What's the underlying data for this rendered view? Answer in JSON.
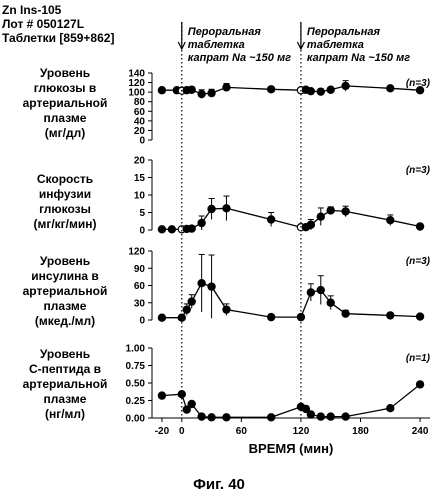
{
  "header": {
    "line1": "Zn Ins-105",
    "line2": "Лот # 050127L",
    "line3": "Таблетки [859+862]"
  },
  "figure_caption": "Фиг. 40",
  "chart_data": {
    "type": "line",
    "xlabel": "ВРЕМЯ (мин)",
    "x_ticks": [
      -20,
      0,
      60,
      120,
      180,
      240
    ],
    "xlim": [
      -30,
      250
    ],
    "dose_times": [
      0,
      120
    ],
    "annotations": [
      {
        "x": 0,
        "lines": [
          "Пероральная",
          "таблетка",
          "капрат Na ~150 мг"
        ]
      },
      {
        "x": 120,
        "lines": [
          "Пероральная",
          "таблетка",
          "капрат Na ~150 мг"
        ]
      }
    ],
    "panels": [
      {
        "title_lines": [
          "Уровень",
          "глюкозы в",
          "артериальной",
          "плазме",
          "(мг/дл)"
        ],
        "n_label": "(n=3)",
        "ylim": [
          0,
          140
        ],
        "y_ticks": [
          "0",
          "20",
          "40",
          "60",
          "80",
          "100",
          "120",
          "140"
        ],
        "x": [
          -20,
          -5,
          0,
          5,
          10,
          20,
          30,
          45,
          90,
          120,
          125,
          130,
          140,
          150,
          165,
          210,
          240
        ],
        "y": [
          104,
          104,
          103,
          104,
          105,
          96,
          98,
          110,
          106,
          104,
          105,
          102,
          101,
          105,
          113,
          108,
          104
        ],
        "err": [
          4,
          3,
          5,
          3,
          6,
          9,
          8,
          8,
          5,
          3,
          4,
          4,
          6,
          5,
          11,
          4,
          4
        ]
      },
      {
        "title_lines": [
          "Скорость",
          "инфузии",
          "глюкозы",
          "(мг/кг/мин)"
        ],
        "n_label": "(n=3)",
        "ylim": [
          0,
          20
        ],
        "y_ticks": [
          "0",
          "5",
          "10",
          "15",
          "20"
        ],
        "x": [
          -20,
          -10,
          0,
          5,
          10,
          20,
          30,
          45,
          90,
          120,
          125,
          130,
          140,
          150,
          165,
          210,
          240
        ],
        "y": [
          0.2,
          0.2,
          0.2,
          0.3,
          0.4,
          2.0,
          6.0,
          6.2,
          3.0,
          0.8,
          0.8,
          1.5,
          3.8,
          5.6,
          5.3,
          2.8,
          1.0
        ],
        "err": [
          0.5,
          0.5,
          0.5,
          0.5,
          0.5,
          2.0,
          3.0,
          3.5,
          2.0,
          0.8,
          0.8,
          1.5,
          2.5,
          1.0,
          1.5,
          1.5,
          0.8
        ]
      },
      {
        "title_lines": [
          "Уровень",
          "инсулина в",
          "артериальной",
          "плазме",
          "(мкед./мл)"
        ],
        "n_label": "(n=3)",
        "ylim": [
          0,
          120
        ],
        "y_ticks": [
          "0",
          "30",
          "60",
          "90",
          "120"
        ],
        "x": [
          -20,
          0,
          5,
          10,
          20,
          30,
          45,
          90,
          120,
          130,
          140,
          150,
          165,
          210,
          240
        ],
        "y": [
          4,
          4,
          18,
          32,
          64,
          58,
          18,
          5,
          5,
          48,
          52,
          30,
          11,
          8,
          6
        ],
        "err": [
          2,
          2,
          10,
          12,
          50,
          55,
          10,
          3,
          3,
          15,
          25,
          12,
          6,
          3,
          3
        ]
      },
      {
        "title_lines": [
          "Уровень",
          "С-пептида в",
          "артериальной",
          "плазме",
          "(нг/мл)"
        ],
        "n_label": "(n=1)",
        "ylim": [
          0,
          1.0
        ],
        "y_ticks": [
          "0.00",
          "0.25",
          "0.50",
          "0.75",
          "1.00"
        ],
        "x": [
          -20,
          0,
          5,
          10,
          20,
          30,
          45,
          90,
          120,
          125,
          130,
          140,
          150,
          165,
          210,
          240
        ],
        "y": [
          0.32,
          0.34,
          0.12,
          0.2,
          0.02,
          0.01,
          0.01,
          0.01,
          0.16,
          0.13,
          0.05,
          0.02,
          0.02,
          0.02,
          0.14,
          0.48
        ],
        "err": [
          0,
          0,
          0,
          0,
          0,
          0,
          0,
          0,
          0,
          0,
          0,
          0,
          0,
          0,
          0,
          0
        ]
      }
    ]
  }
}
